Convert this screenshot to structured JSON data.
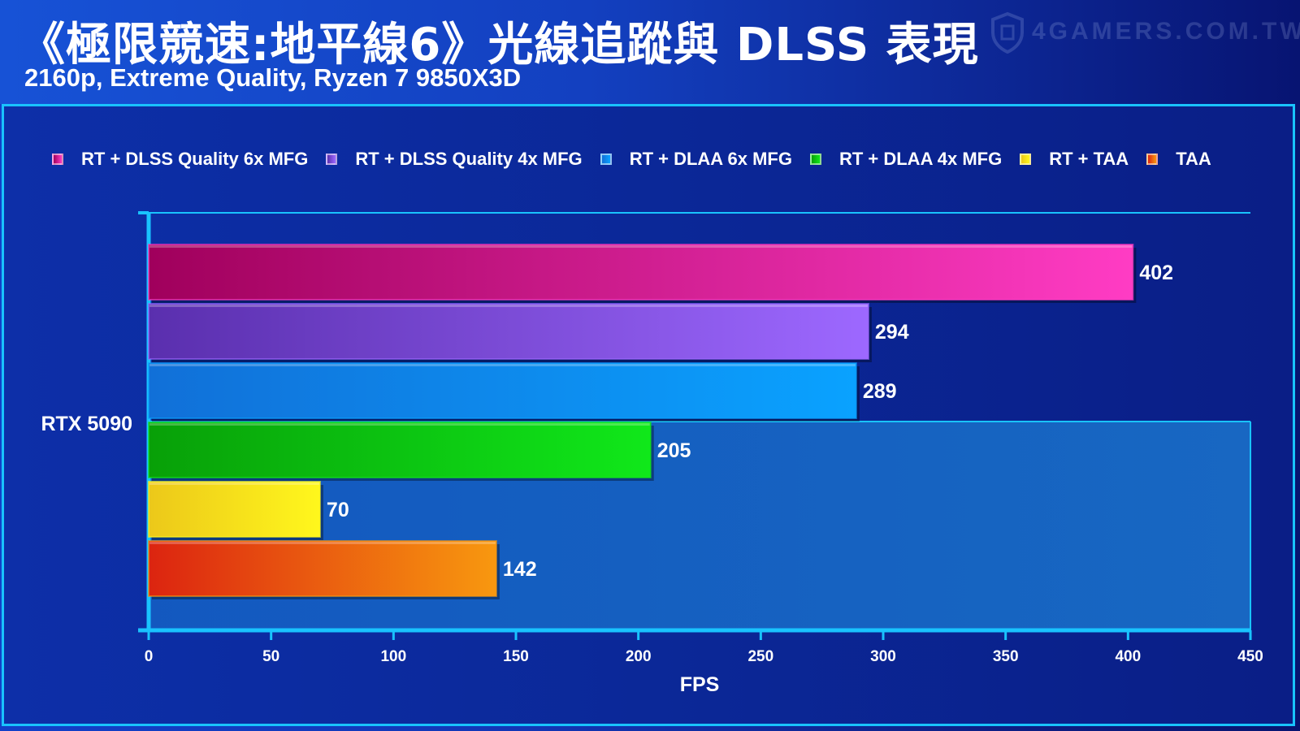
{
  "header": {
    "title": "《極限競速:地平線6》光線追蹤與 DLSS 表現",
    "subtitle": "2160p, Extreme Quality, Ryzen 7 9850X3D",
    "watermark": "4GAMERS.COM.TW"
  },
  "colors": {
    "background": "#0b2898",
    "accent": "#19c3ff",
    "text": "#ffffff"
  },
  "chart_data": {
    "type": "bar",
    "orientation": "horizontal",
    "title": "《極限競速:地平線6》光線追蹤與 DLSS 表現",
    "subtitle": "2160p, Extreme Quality, Ryzen 7 9850X3D",
    "xlabel": "FPS",
    "ylabel": "",
    "xlim": [
      0,
      450
    ],
    "xticks": [
      0,
      50,
      100,
      150,
      200,
      250,
      300,
      350,
      400,
      450
    ],
    "categories": [
      "RTX 5090"
    ],
    "legend_position": "top",
    "series": [
      {
        "name": "RT + DLSS Quality 6x MFG",
        "values": [
          402
        ],
        "color_start": "#a0005c",
        "color_end": "#ff3cc4",
        "swatch": "#e03aa8"
      },
      {
        "name": "RT + DLSS Quality 4x MFG",
        "values": [
          294
        ],
        "color_start": "#5a2fae",
        "color_end": "#9d68ff",
        "swatch": "#8a5ae8"
      },
      {
        "name": "RT + DLAA 6x MFG",
        "values": [
          289
        ],
        "color_start": "#1170d8",
        "color_end": "#0aa2ff",
        "swatch": "#1a86ef"
      },
      {
        "name": "RT + DLAA 4x MFG",
        "values": [
          205
        ],
        "color_start": "#08a008",
        "color_end": "#10e81a",
        "swatch": "#17c21f"
      },
      {
        "name": "RT + TAA",
        "values": [
          70
        ],
        "color_start": "#ecc81a",
        "color_end": "#fff71c",
        "swatch": "#f5db1f"
      },
      {
        "name": "TAA",
        "values": [
          142
        ],
        "color_start": "#dc2410",
        "color_end": "#f8980f",
        "swatch": "#ea5418"
      }
    ]
  }
}
